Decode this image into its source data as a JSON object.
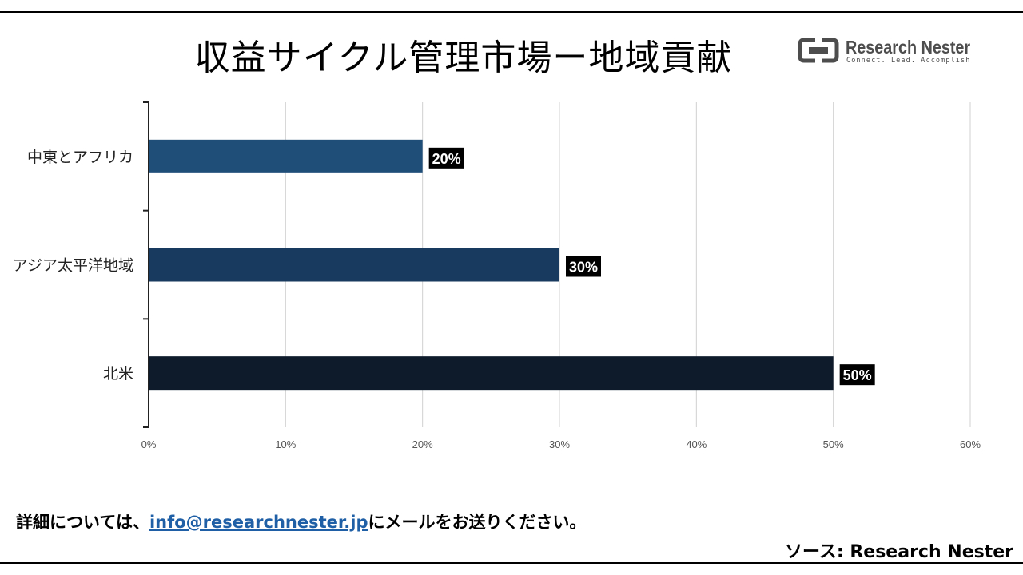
{
  "page": {
    "title": "収益サイクル管理市場ー地域貢献",
    "logo": {
      "name": "Research Nester",
      "tagline": "Connect. Lead. Accomplish",
      "icon": "research-nester-logo-icon"
    },
    "footer": {
      "prefix": "詳細については、",
      "email": "info@researchnester.jp",
      "suffix": "にメールをお送りください。"
    },
    "source": "ソース: Research Nester"
  },
  "chart_data": {
    "type": "bar",
    "orientation": "horizontal",
    "categories": [
      "中東とアフリカ",
      "アジア太平洋地域",
      "北米"
    ],
    "values": [
      20,
      30,
      50
    ],
    "data_labels": [
      "20%",
      "30%",
      "50%"
    ],
    "bar_colors": [
      "#1f4e79",
      "#173a5e",
      "#0d1b2a"
    ],
    "xlim": [
      0,
      60
    ],
    "xticks": [
      0,
      10,
      20,
      30,
      40,
      50,
      60
    ],
    "xtick_labels": [
      "0%",
      "10%",
      "20%",
      "30%",
      "40%",
      "50%",
      "60%"
    ],
    "grid": true,
    "legend": "none"
  }
}
